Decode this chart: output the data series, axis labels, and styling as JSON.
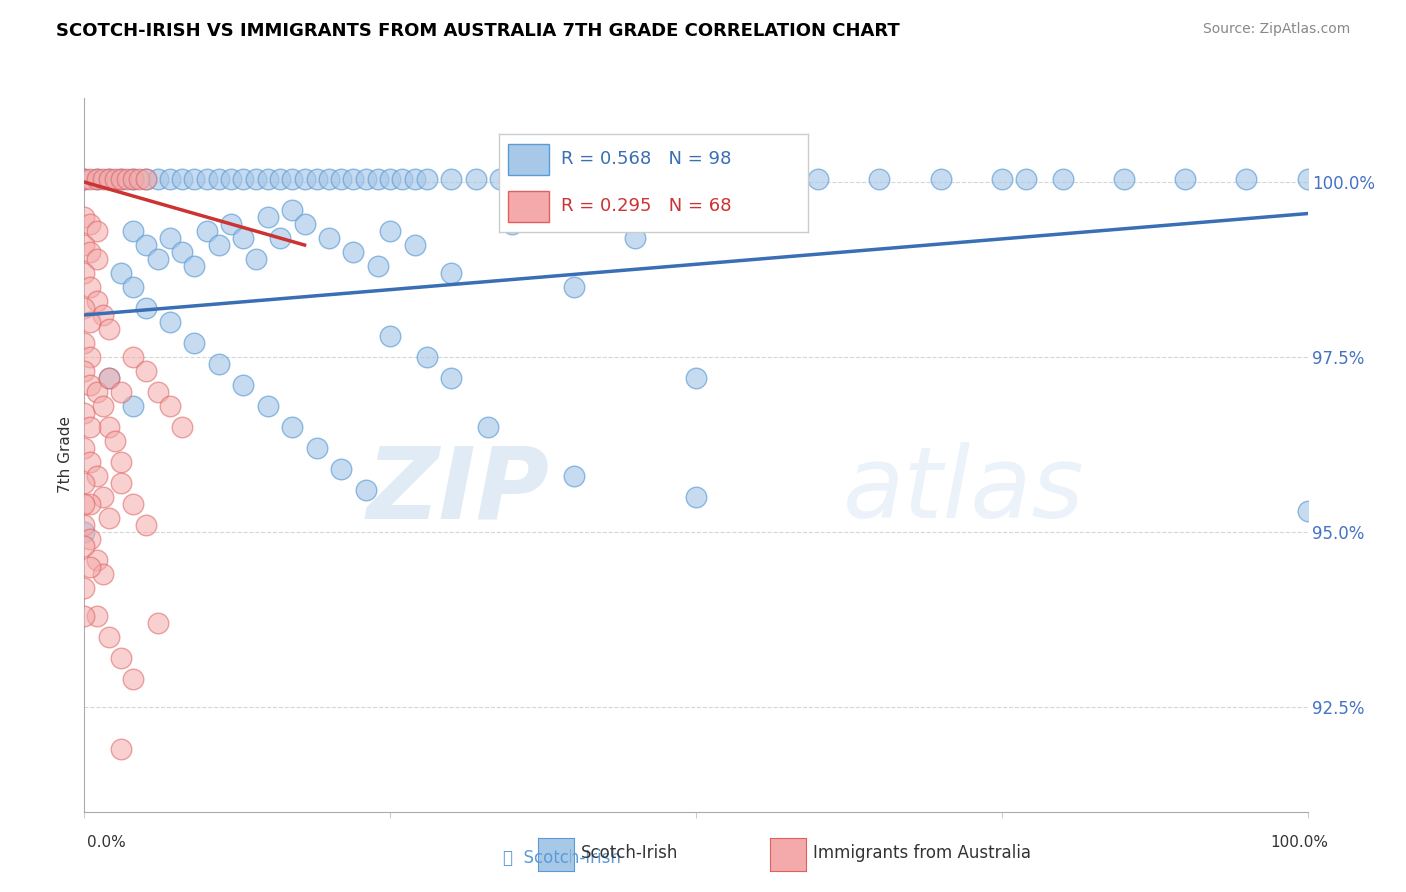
{
  "title": "SCOTCH-IRISH VS IMMIGRANTS FROM AUSTRALIA 7TH GRADE CORRELATION CHART",
  "source_text": "Source: ZipAtlas.com",
  "ylabel": "7th Grade",
  "xlim": [
    0.0,
    1.0
  ],
  "ylim": [
    91.0,
    101.2
  ],
  "yticks": [
    92.5,
    95.0,
    97.5,
    100.0
  ],
  "ytick_labels": [
    "92.5%",
    "95.0%",
    "97.5%",
    "100.0%"
  ],
  "blue_color": "#a8c8e8",
  "blue_edge": "#5b9bd5",
  "pink_color": "#f4aaaa",
  "pink_edge": "#e06060",
  "trend_blue": "#3a6eb5",
  "trend_pink": "#cc3333",
  "legend_R_blue": "R = 0.568",
  "legend_N_blue": "N = 98",
  "legend_R_pink": "R = 0.295",
  "legend_N_pink": "N = 68",
  "watermark_zip": "ZIP",
  "watermark_atlas": "atlas",
  "blue_trend_x": [
    0.0,
    1.0
  ],
  "blue_trend_y": [
    98.1,
    99.55
  ],
  "pink_trend_x": [
    0.0,
    0.18
  ],
  "pink_trend_y": [
    100.0,
    99.1
  ],
  "blue_dots": [
    [
      0.0,
      100.05
    ],
    [
      0.01,
      100.05
    ],
    [
      0.02,
      100.05
    ],
    [
      0.03,
      100.05
    ],
    [
      0.04,
      100.05
    ],
    [
      0.05,
      100.05
    ],
    [
      0.06,
      100.05
    ],
    [
      0.07,
      100.05
    ],
    [
      0.08,
      100.05
    ],
    [
      0.09,
      100.05
    ],
    [
      0.1,
      100.05
    ],
    [
      0.11,
      100.05
    ],
    [
      0.12,
      100.05
    ],
    [
      0.13,
      100.05
    ],
    [
      0.14,
      100.05
    ],
    [
      0.15,
      100.05
    ],
    [
      0.16,
      100.05
    ],
    [
      0.17,
      100.05
    ],
    [
      0.18,
      100.05
    ],
    [
      0.19,
      100.05
    ],
    [
      0.2,
      100.05
    ],
    [
      0.21,
      100.05
    ],
    [
      0.22,
      100.05
    ],
    [
      0.23,
      100.05
    ],
    [
      0.24,
      100.05
    ],
    [
      0.25,
      100.05
    ],
    [
      0.26,
      100.05
    ],
    [
      0.27,
      100.05
    ],
    [
      0.28,
      100.05
    ],
    [
      0.3,
      100.05
    ],
    [
      0.32,
      100.05
    ],
    [
      0.34,
      100.05
    ],
    [
      0.36,
      100.05
    ],
    [
      0.38,
      100.05
    ],
    [
      0.4,
      100.05
    ],
    [
      0.5,
      100.05
    ],
    [
      0.55,
      100.05
    ],
    [
      0.6,
      100.05
    ],
    [
      0.65,
      100.05
    ],
    [
      0.7,
      100.05
    ],
    [
      0.75,
      100.05
    ],
    [
      0.77,
      100.05
    ],
    [
      0.8,
      100.05
    ],
    [
      0.85,
      100.05
    ],
    [
      0.9,
      100.05
    ],
    [
      0.95,
      100.05
    ],
    [
      1.0,
      100.05
    ],
    [
      0.04,
      99.3
    ],
    [
      0.05,
      99.1
    ],
    [
      0.06,
      98.9
    ],
    [
      0.07,
      99.2
    ],
    [
      0.08,
      99.0
    ],
    [
      0.09,
      98.8
    ],
    [
      0.1,
      99.3
    ],
    [
      0.11,
      99.1
    ],
    [
      0.12,
      99.4
    ],
    [
      0.13,
      99.2
    ],
    [
      0.14,
      98.9
    ],
    [
      0.15,
      99.5
    ],
    [
      0.16,
      99.2
    ],
    [
      0.17,
      99.6
    ],
    [
      0.18,
      99.4
    ],
    [
      0.2,
      99.2
    ],
    [
      0.22,
      99.0
    ],
    [
      0.24,
      98.8
    ],
    [
      0.25,
      99.3
    ],
    [
      0.27,
      99.1
    ],
    [
      0.3,
      98.7
    ],
    [
      0.35,
      99.4
    ],
    [
      0.4,
      98.5
    ],
    [
      0.45,
      99.2
    ],
    [
      0.5,
      97.2
    ],
    [
      0.03,
      98.7
    ],
    [
      0.04,
      98.5
    ],
    [
      0.05,
      98.2
    ],
    [
      0.07,
      98.0
    ],
    [
      0.09,
      97.7
    ],
    [
      0.11,
      97.4
    ],
    [
      0.13,
      97.1
    ],
    [
      0.15,
      96.8
    ],
    [
      0.17,
      96.5
    ],
    [
      0.19,
      96.2
    ],
    [
      0.21,
      95.9
    ],
    [
      0.23,
      95.6
    ],
    [
      0.02,
      97.2
    ],
    [
      0.04,
      96.8
    ],
    [
      0.0,
      95.0
    ],
    [
      0.25,
      97.8
    ],
    [
      0.28,
      97.5
    ],
    [
      0.3,
      97.2
    ],
    [
      0.33,
      96.5
    ],
    [
      0.4,
      95.8
    ],
    [
      0.5,
      95.5
    ],
    [
      1.0,
      95.3
    ]
  ],
  "pink_dots": [
    [
      0.0,
      100.05
    ],
    [
      0.005,
      100.05
    ],
    [
      0.01,
      100.05
    ],
    [
      0.015,
      100.05
    ],
    [
      0.02,
      100.05
    ],
    [
      0.025,
      100.05
    ],
    [
      0.03,
      100.05
    ],
    [
      0.035,
      100.05
    ],
    [
      0.04,
      100.05
    ],
    [
      0.045,
      100.05
    ],
    [
      0.05,
      100.05
    ],
    [
      0.0,
      99.5
    ],
    [
      0.005,
      99.4
    ],
    [
      0.01,
      99.3
    ],
    [
      0.0,
      99.1
    ],
    [
      0.005,
      99.0
    ],
    [
      0.01,
      98.9
    ],
    [
      0.0,
      98.7
    ],
    [
      0.005,
      98.5
    ],
    [
      0.01,
      98.3
    ],
    [
      0.015,
      98.1
    ],
    [
      0.02,
      97.9
    ],
    [
      0.0,
      98.2
    ],
    [
      0.005,
      98.0
    ],
    [
      0.0,
      97.7
    ],
    [
      0.005,
      97.5
    ],
    [
      0.0,
      97.3
    ],
    [
      0.005,
      97.1
    ],
    [
      0.01,
      97.0
    ],
    [
      0.015,
      96.8
    ],
    [
      0.02,
      96.5
    ],
    [
      0.025,
      96.3
    ],
    [
      0.03,
      96.0
    ],
    [
      0.0,
      96.7
    ],
    [
      0.005,
      96.5
    ],
    [
      0.0,
      96.2
    ],
    [
      0.005,
      96.0
    ],
    [
      0.01,
      95.8
    ],
    [
      0.015,
      95.5
    ],
    [
      0.02,
      95.2
    ],
    [
      0.0,
      95.7
    ],
    [
      0.005,
      95.4
    ],
    [
      0.0,
      95.1
    ],
    [
      0.005,
      94.9
    ],
    [
      0.01,
      94.6
    ],
    [
      0.015,
      94.4
    ],
    [
      0.0,
      94.8
    ],
    [
      0.005,
      94.5
    ],
    [
      0.0,
      94.2
    ],
    [
      0.0,
      95.4
    ],
    [
      0.02,
      97.2
    ],
    [
      0.03,
      97.0
    ],
    [
      0.04,
      97.5
    ],
    [
      0.05,
      97.3
    ],
    [
      0.06,
      97.0
    ],
    [
      0.07,
      96.8
    ],
    [
      0.08,
      96.5
    ],
    [
      0.03,
      95.7
    ],
    [
      0.04,
      95.4
    ],
    [
      0.05,
      95.1
    ],
    [
      0.01,
      93.8
    ],
    [
      0.02,
      93.5
    ],
    [
      0.03,
      93.2
    ],
    [
      0.04,
      92.9
    ],
    [
      0.0,
      93.8
    ],
    [
      0.06,
      93.7
    ],
    [
      0.03,
      91.9
    ]
  ]
}
